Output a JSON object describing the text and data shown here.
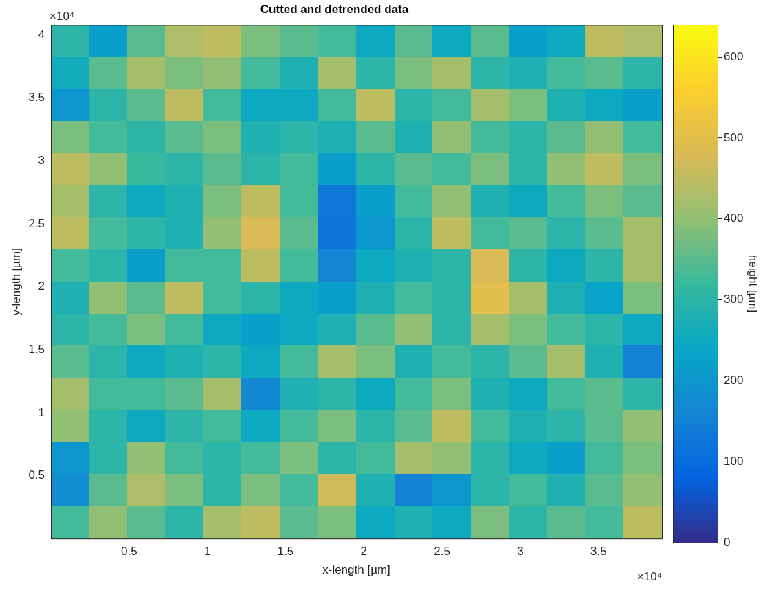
{
  "chart_data": {
    "type": "heatmap",
    "title": "Cutted and detrended data",
    "xlabel": "x-length [µm]",
    "ylabel": "y-length [µm]",
    "clabel": "height [µm]",
    "annotations": [
      "×10⁴",
      "×10⁴"
    ],
    "xlim": [
      0,
      3.905
    ],
    "ylim": [
      0,
      4.08
    ],
    "xticks": [
      0.5,
      1,
      1.5,
      2,
      2.5,
      3,
      3.5
    ],
    "yticks": [
      0.5,
      1,
      1.5,
      2,
      2.5,
      3,
      3.5,
      4
    ],
    "clim": [
      0,
      640
    ],
    "cticks": [
      0,
      100,
      200,
      300,
      400,
      500,
      600
    ],
    "cells": [
      [
        300,
        220,
        350,
        430,
        450,
        380,
        350,
        330,
        250,
        350,
        250,
        350,
        220,
        250,
        450,
        430
      ],
      [
        260,
        350,
        420,
        380,
        400,
        330,
        280,
        420,
        300,
        380,
        420,
        300,
        280,
        330,
        350,
        300
      ],
      [
        200,
        300,
        350,
        450,
        330,
        250,
        250,
        330,
        450,
        300,
        330,
        420,
        380,
        280,
        250,
        220
      ],
      [
        380,
        330,
        300,
        350,
        380,
        280,
        300,
        280,
        350,
        280,
        400,
        330,
        300,
        350,
        400,
        330
      ],
      [
        450,
        400,
        320,
        300,
        350,
        300,
        330,
        220,
        300,
        350,
        330,
        380,
        300,
        400,
        450,
        380
      ],
      [
        420,
        300,
        250,
        280,
        380,
        450,
        330,
        130,
        220,
        330,
        400,
        280,
        250,
        330,
        380,
        350
      ],
      [
        450,
        330,
        300,
        280,
        400,
        480,
        350,
        120,
        200,
        300,
        450,
        330,
        350,
        300,
        350,
        420
      ],
      [
        330,
        300,
        220,
        330,
        330,
        450,
        330,
        160,
        250,
        280,
        300,
        480,
        300,
        250,
        300,
        420
      ],
      [
        280,
        400,
        350,
        450,
        330,
        300,
        250,
        220,
        280,
        330,
        300,
        500,
        420,
        280,
        230,
        380
      ],
      [
        300,
        330,
        380,
        330,
        250,
        220,
        250,
        280,
        350,
        400,
        300,
        420,
        380,
        330,
        300,
        250
      ],
      [
        350,
        300,
        250,
        280,
        300,
        250,
        330,
        420,
        380,
        280,
        330,
        300,
        350,
        420,
        280,
        150
      ],
      [
        420,
        330,
        330,
        350,
        420,
        170,
        280,
        300,
        250,
        330,
        380,
        280,
        250,
        330,
        350,
        300
      ],
      [
        400,
        300,
        250,
        300,
        330,
        250,
        330,
        380,
        300,
        350,
        450,
        330,
        280,
        300,
        350,
        400
      ],
      [
        200,
        300,
        400,
        330,
        300,
        330,
        380,
        300,
        330,
        420,
        400,
        300,
        250,
        220,
        330,
        380
      ],
      [
        180,
        350,
        430,
        380,
        300,
        380,
        330,
        470,
        280,
        150,
        200,
        300,
        330,
        280,
        350,
        400
      ],
      [
        330,
        400,
        350,
        300,
        420,
        450,
        350,
        380,
        250,
        280,
        250,
        380,
        300,
        350,
        330,
        450
      ]
    ]
  }
}
